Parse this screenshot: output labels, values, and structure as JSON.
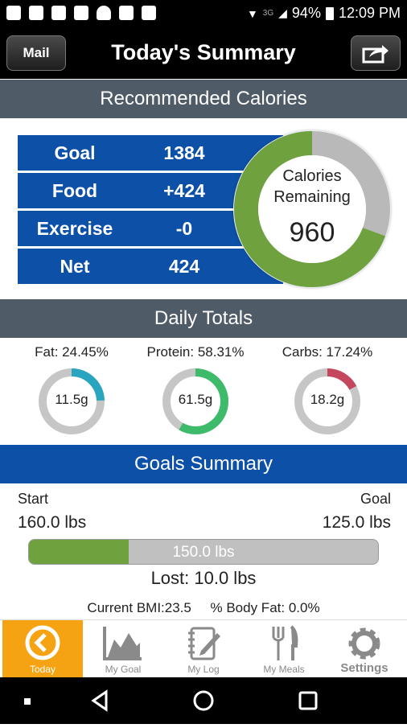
{
  "status_bar": {
    "network": "3G",
    "battery": "94%",
    "time": "12:09 PM"
  },
  "header": {
    "mail_button": "Mail",
    "title": "Today's Summary"
  },
  "recommended": {
    "section_title": "Recommended Calories",
    "rows": [
      {
        "label": "Goal",
        "value": "1384"
      },
      {
        "label": "Food",
        "value": "+424"
      },
      {
        "label": "Exercise",
        "value": "-0"
      },
      {
        "label": "Net",
        "value": "424"
      }
    ],
    "ring": {
      "line1": "Calories",
      "line2": "Remaining",
      "value": "960",
      "consumed_fraction": 0.306
    }
  },
  "daily_totals": {
    "section_title": "Daily Totals",
    "macros": [
      {
        "label": "Fat: 24.45%",
        "value": "11.5g",
        "fraction": 0.2445,
        "color": "#2aa5c0"
      },
      {
        "label": "Protein: 58.31%",
        "value": "61.5g",
        "fraction": 0.5831,
        "color": "#3dbb6a"
      },
      {
        "label": "Carbs: 17.24%",
        "value": "18.2g",
        "fraction": 0.1724,
        "color": "#c5475e"
      }
    ]
  },
  "goals": {
    "section_title": "Goals Summary",
    "start_label": "Start",
    "start_value": "160.0 lbs",
    "goal_label": "Goal",
    "goal_value": "125.0 lbs",
    "current": "150.0 lbs",
    "progress_fraction": 0.286,
    "lost": "Lost: 10.0 lbs",
    "bmi": "Current BMI:23.5",
    "body_fat": "% Body Fat: 0.0%"
  },
  "tabs": [
    {
      "label": "Today",
      "icon": "today-icon"
    },
    {
      "label": "My Goal",
      "icon": "chart-icon"
    },
    {
      "label": "My Log",
      "icon": "notebook-icon"
    },
    {
      "label": "My Meals",
      "icon": "fork-knife-icon"
    },
    {
      "label": "Settings",
      "icon": "gear-icon"
    }
  ],
  "colors": {
    "accent_blue": "#0d50a8",
    "section_gray": "#4f5b66",
    "ring_green": "#6fa23f",
    "tab_active": "#f5a312"
  }
}
